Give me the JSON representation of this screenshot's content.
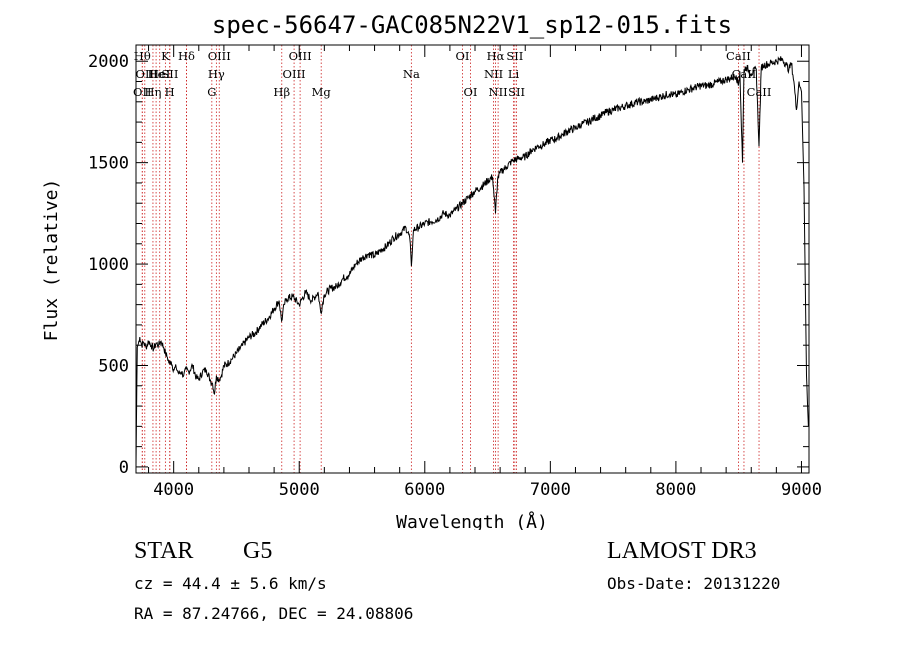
{
  "chart_data": {
    "type": "line",
    "title": "spec-56647-GAC085N22V1_sp12-015.fits",
    "xlabel": "Wavelength (Å)",
    "ylabel": "Flux (relative)",
    "xlim": [
      3700,
      9060
    ],
    "ylim": [
      -30,
      2080
    ],
    "xticks": [
      4000,
      5000,
      6000,
      7000,
      8000,
      9000
    ],
    "yticks": [
      0,
      500,
      1000,
      1500,
      2000
    ],
    "grid": false,
    "series": [
      {
        "x": [
          3700,
          3710,
          3720,
          3730,
          3745,
          3760,
          3780,
          3800,
          3820,
          3840,
          3860,
          3880,
          3900,
          3920,
          3935,
          3950,
          3965,
          3980,
          4000,
          4020,
          4040,
          4060,
          4080,
          4100,
          4120,
          4150,
          4180,
          4200,
          4230,
          4260,
          4290,
          4310,
          4325,
          4340,
          4360,
          4380,
          4400,
          4430,
          4460,
          4500,
          4550,
          4600,
          4650,
          4700,
          4750,
          4800,
          4840,
          4860,
          4880,
          4900,
          4950,
          5000,
          5050,
          5100,
          5150,
          5172,
          5200,
          5250,
          5300,
          5350,
          5400,
          5450,
          5500,
          5550,
          5600,
          5650,
          5700,
          5750,
          5800,
          5850,
          5880,
          5893,
          5910,
          5950,
          6000,
          6050,
          6100,
          6150,
          6200,
          6250,
          6300,
          6350,
          6400,
          6450,
          6500,
          6540,
          6563,
          6580,
          6600,
          6650,
          6700,
          6750,
          6800,
          6850,
          6900,
          6950,
          7000,
          7050,
          7100,
          7150,
          7200,
          7250,
          7300,
          7350,
          7400,
          7450,
          7500,
          7550,
          7600,
          7650,
          7700,
          7750,
          7800,
          7850,
          7900,
          7950,
          8000,
          8050,
          8100,
          8150,
          8200,
          8250,
          8300,
          8350,
          8400,
          8450,
          8480,
          8498,
          8510,
          8530,
          8542,
          8560,
          8600,
          8640,
          8662,
          8680,
          8700,
          8750,
          8800,
          8850,
          8880,
          8900,
          8920,
          8940,
          8960,
          8980,
          9000,
          9020,
          9040,
          9055
        ],
        "values": [
          0,
          590,
          610,
          640,
          600,
          615,
          590,
          620,
          600,
          580,
          610,
          600,
          620,
          590,
          560,
          540,
          510,
          520,
          480,
          490,
          460,
          470,
          450,
          480,
          470,
          500,
          440,
          430,
          470,
          480,
          430,
          410,
          360,
          450,
          430,
          450,
          500,
          510,
          530,
          560,
          600,
          640,
          660,
          700,
          730,
          780,
          820,
          720,
          800,
          830,
          840,
          800,
          860,
          820,
          860,
          760,
          850,
          880,
          890,
          930,
          950,
          1000,
          1030,
          1050,
          1040,
          1070,
          1090,
          1130,
          1150,
          1180,
          1130,
          990,
          1170,
          1180,
          1200,
          1210,
          1220,
          1250,
          1240,
          1270,
          1300,
          1330,
          1360,
          1380,
          1410,
          1430,
          1250,
          1420,
          1450,
          1480,
          1510,
          1520,
          1530,
          1560,
          1580,
          1590,
          1610,
          1620,
          1640,
          1660,
          1670,
          1690,
          1700,
          1720,
          1730,
          1750,
          1760,
          1770,
          1780,
          1790,
          1800,
          1800,
          1810,
          1820,
          1830,
          1840,
          1830,
          1850,
          1860,
          1870,
          1880,
          1880,
          1890,
          1900,
          1910,
          1920,
          1930,
          1880,
          1950,
          1500,
          1960,
          1970,
          1940,
          1960,
          1580,
          1970,
          1980,
          1990,
          2000,
          2010,
          1980,
          1960,
          1990,
          1900,
          1760,
          1900,
          1850,
          1380,
          450,
          200
        ]
      }
    ],
    "lines": [
      {
        "x": 3750,
        "label": "Hθ",
        "row": 0
      },
      {
        "x": 3770,
        "label": "OII",
        "row": 1
      },
      {
        "x": 3750,
        "label": "OII",
        "row": 2
      },
      {
        "x": 3835,
        "label": "Hη",
        "row": 2
      },
      {
        "x": 3860,
        "label": "He",
        "row": 1
      },
      {
        "x": 3889,
        "label": "HeI",
        "row": 1
      },
      {
        "x": 3934,
        "label": "K",
        "row": 0
      },
      {
        "x": 3968,
        "label": "H",
        "row": 2
      },
      {
        "x": 3970,
        "label": "SII",
        "row": 1
      },
      {
        "x": 4102,
        "label": "Hδ",
        "row": 0
      },
      {
        "x": 4103,
        "label": "",
        "row": -1
      },
      {
        "x": 4304,
        "label": "G",
        "row": 2
      },
      {
        "x": 4340,
        "label": "Hγ",
        "row": 1
      },
      {
        "x": 4363,
        "label": "OIII",
        "row": 0
      },
      {
        "x": 4861,
        "label": "Hβ",
        "row": 2
      },
      {
        "x": 4959,
        "label": "OIII",
        "row": 1
      },
      {
        "x": 5007,
        "label": "OIII",
        "row": 0
      },
      {
        "x": 5175,
        "label": "Mg",
        "row": 2
      },
      {
        "x": 5893,
        "label": "Na",
        "row": 1
      },
      {
        "x": 6300,
        "label": "OI",
        "row": 0
      },
      {
        "x": 6364,
        "label": "OI",
        "row": 2
      },
      {
        "x": 6548,
        "label": "NII",
        "row": 1
      },
      {
        "x": 6563,
        "label": "Hα",
        "row": 0
      },
      {
        "x": 6584,
        "label": "NII",
        "row": 2
      },
      {
        "x": 6707,
        "label": "Li",
        "row": 1
      },
      {
        "x": 6717,
        "label": "SII",
        "row": 0
      },
      {
        "x": 6731,
        "label": "SII",
        "row": 2
      },
      {
        "x": 8498,
        "label": "CaII",
        "row": 0
      },
      {
        "x": 8542,
        "label": "CaII",
        "row": 1
      },
      {
        "x": 8662,
        "label": "CaII",
        "row": 2
      }
    ]
  },
  "info": {
    "class": "STAR",
    "subclass": "G5",
    "survey": "LAMOST DR3",
    "cz": "cz = 44.4 ± 5.6 km/s",
    "obs_date": "Obs-Date: 20131220",
    "radec": "RA =  87.24766, DEC =  24.08806"
  },
  "colors": {
    "line_marker": "#cc2222",
    "spectrum": "#000000"
  }
}
